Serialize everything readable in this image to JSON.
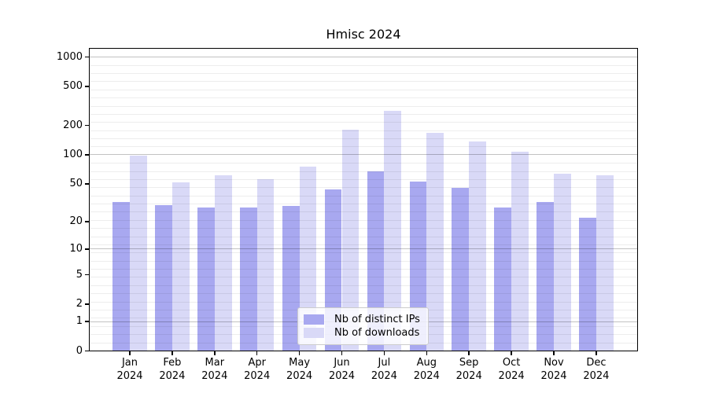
{
  "title": "Hmisc 2024",
  "chart_data": {
    "type": "bar",
    "title": "Hmisc 2024",
    "categories": [
      "Jan",
      "Feb",
      "Mar",
      "Apr",
      "May",
      "Jun",
      "Jul",
      "Aug",
      "Sep",
      "Oct",
      "Nov",
      "Dec"
    ],
    "year": "2024",
    "series": [
      {
        "key": "ips",
        "name": "Nb of distinct IPs",
        "color": "#a8a8f0",
        "values": [
          32,
          30,
          28,
          28,
          29,
          44,
          67,
          53,
          45,
          28,
          32,
          22
        ]
      },
      {
        "key": "downloads",
        "name": "Nb of downloads",
        "color": "#d9d9f7",
        "values": [
          97,
          52,
          61,
          56,
          76,
          180,
          282,
          167,
          137,
          108,
          64,
          61
        ]
      }
    ],
    "y_ticks": [
      0,
      1,
      2,
      5,
      10,
      20,
      50,
      100,
      200,
      500,
      1000
    ],
    "y_scale": "log1p",
    "ylim": [
      0,
      1100
    ],
    "grid": true,
    "legend_position": "lower center"
  },
  "colors": {
    "ips_bar": "#a8a8f0",
    "downloads_bar": "#d9d9f7",
    "major_grid": "#c6c6c6",
    "minor_grid": "#ededed",
    "axis": "#000000",
    "background": "#ffffff"
  }
}
